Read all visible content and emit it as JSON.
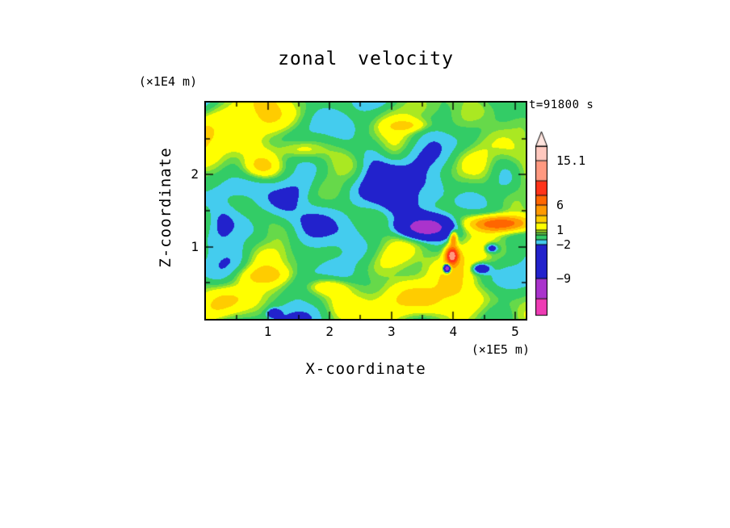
{
  "chart_data": {
    "type": "heatmap",
    "title": "zonal velocity",
    "annotation": "t=91800 s",
    "xlabel": "X-coordinate",
    "ylabel": "Z-coordinate",
    "x_units": "(×1E5 m)",
    "y_units": "(×1E4 m)",
    "x_range": [
      0,
      5.17
    ],
    "y_range": [
      0,
      3.0
    ],
    "x_ticks_major": [
      1,
      2,
      3,
      4,
      5
    ],
    "x_ticks_minor": [
      0.5,
      1.5,
      2.5,
      3.5,
      4.5
    ],
    "y_ticks_major": [
      1,
      2
    ],
    "y_ticks_minor": [
      0.5,
      1.5,
      2.5
    ],
    "x_tick_labels": [
      "1",
      "2",
      "3",
      "4",
      "5"
    ],
    "y_tick_labels": [
      "1",
      "2"
    ],
    "colorbar": {
      "levels": [
        -16,
        -9,
        -2,
        -1,
        0,
        0.5,
        1,
        2.5,
        4,
        6,
        8,
        11,
        15.1
      ],
      "colors": [
        "#EE3CB4",
        "#AA33CC",
        "#2222CC",
        "#44CCEE",
        "#33CC66",
        "#66D94A",
        "#AAE822",
        "#FFFF00",
        "#FFCC00",
        "#FF9900",
        "#FF6600",
        "#FF3319",
        "#FF9980",
        "#FFC8BE"
      ],
      "arrow_color": "#FFE4DE",
      "display_spans": [
        3.5,
        4,
        7,
        1,
        1,
        0.5,
        0.5,
        1.5,
        1.5,
        2,
        2,
        3,
        4.1,
        3
      ],
      "ticks": [
        {
          "level": 15.1,
          "label": "15.1"
        },
        {
          "level": 6,
          "label": "6"
        },
        {
          "level": 1,
          "label": "1"
        },
        {
          "level": -2,
          "label": "−2"
        },
        {
          "level": -9,
          "label": "−9"
        }
      ]
    },
    "field": {
      "noise_scale": 0.55,
      "offset": -0.35,
      "bands": [
        {
          "z": 0.3,
          "sigma2": 0.064,
          "amp": 1.8
        },
        {
          "z": 2.62,
          "sigma2": 0.1,
          "amp": 1.0
        },
        {
          "z": 1.65,
          "sigma2": 0.36,
          "amp": -0.6
        }
      ],
      "features": [
        {
          "x": 3.55,
          "z": 1.27,
          "amp": -13,
          "sx": 0.36,
          "sz": 0.13
        },
        {
          "x": 4.75,
          "z": 1.32,
          "amp": 8.5,
          "sx": 0.45,
          "sz": 0.11
        },
        {
          "x": 3.98,
          "z": 0.88,
          "amp": 12,
          "sx": 0.1,
          "sz": 0.12
        },
        {
          "x": 4.0,
          "z": 1.12,
          "amp": 6,
          "sx": 0.06,
          "sz": 0.1
        },
        {
          "x": 3.9,
          "z": 0.7,
          "amp": -17,
          "sx": 0.05,
          "sz": 0.05
        },
        {
          "x": 4.44,
          "z": 0.7,
          "amp": -5,
          "sx": 0.14,
          "sz": 0.07
        },
        {
          "x": 4.62,
          "z": 0.98,
          "amp": -4.5,
          "sx": 0.1,
          "sz": 0.06
        },
        {
          "x": 1.1,
          "z": 0.08,
          "amp": -4,
          "sx": 0.1,
          "sz": 0.06
        },
        {
          "x": 0.9,
          "z": 2.1,
          "amp": 3.0,
          "sx": 0.3,
          "sz": 0.16
        },
        {
          "x": 1.5,
          "z": 2.35,
          "amp": 2.4,
          "sx": 0.38,
          "sz": 0.13
        },
        {
          "x": 0.95,
          "z": 0.6,
          "amp": 2.6,
          "sx": 0.45,
          "sz": 0.13
        },
        {
          "x": 1.95,
          "z": 0.45,
          "amp": 2.2,
          "sx": 0.4,
          "sz": 0.11
        },
        {
          "x": 3.3,
          "z": 2.68,
          "amp": 2.2,
          "sx": 0.35,
          "sz": 0.09
        },
        {
          "x": 4.5,
          "z": 1.95,
          "amp": 1.8,
          "sx": 0.28,
          "sz": 0.3
        },
        {
          "x": 2.75,
          "z": 2.25,
          "amp": -1.8,
          "sx": 0.28,
          "sz": 0.45
        },
        {
          "x": 3.05,
          "z": 1.55,
          "amp": -1.4,
          "sx": 0.25,
          "sz": 0.28
        },
        {
          "x": 0.25,
          "z": 1.35,
          "amp": -1.5,
          "sx": 0.2,
          "sz": 0.25
        }
      ]
    }
  }
}
